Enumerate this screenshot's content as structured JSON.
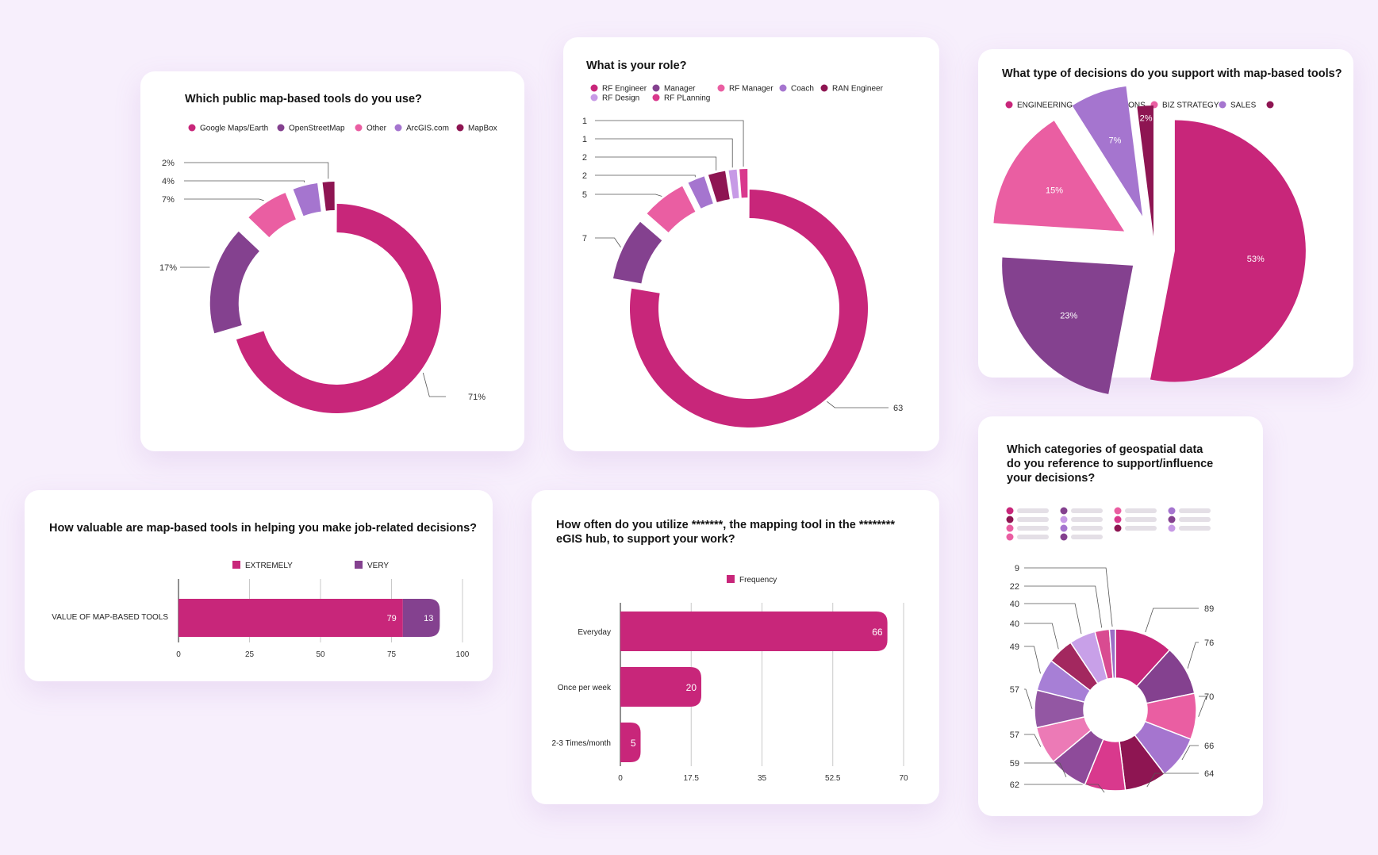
{
  "colors": {
    "magenta": "#c8267a",
    "purple": "#84418f",
    "pink": "#ea5ea2",
    "lavender": "#a575cf",
    "plum": "#8e1552",
    "lilac": "#c79ae6",
    "rose": "#d9398d"
  },
  "chart_data": [
    {
      "id": "public-tools",
      "type": "pie",
      "title": "Which public map-based tools do you use?",
      "categories": [
        "Google Maps/Earth",
        "OpenStreetMap",
        "Other",
        "ArcGIS.com",
        "MapBox"
      ],
      "values": [
        71,
        17,
        7,
        4,
        2
      ],
      "value_labels": [
        "71%",
        "17%",
        "7%",
        "4%",
        "2%"
      ],
      "style": "donut"
    },
    {
      "id": "role",
      "type": "pie",
      "title": "What is your role?",
      "categories": [
        "RF Engineer",
        "Manager",
        "RF Manager",
        "Coach",
        "RAN Engineer",
        "RF Design",
        "RF PLanning"
      ],
      "values": [
        63,
        7,
        5,
        2,
        2,
        1,
        1
      ],
      "value_labels": [
        "63",
        "7",
        "5",
        "2",
        "2",
        "1",
        "1"
      ],
      "style": "donut"
    },
    {
      "id": "decision-types",
      "type": "pie",
      "title": "What type of decisions do you support with map-based tools?",
      "categories": [
        "ENGINEERING",
        "OPERATIONS",
        "BIZ STRATEGY",
        "SALES",
        ""
      ],
      "values": [
        53,
        23,
        15,
        7,
        2
      ],
      "value_labels": [
        "53%",
        "23%",
        "15%",
        "7%",
        "2%"
      ],
      "style": "exploded"
    },
    {
      "id": "value",
      "type": "bar",
      "orientation": "horizontal",
      "stacked": true,
      "title": "How valuable are map-based tools in helping you make job-related decisions?",
      "categories": [
        "VALUE OF MAP-BASED TOOLS"
      ],
      "series": [
        {
          "name": "EXTREMELY",
          "values": [
            79
          ]
        },
        {
          "name": "VERY",
          "values": [
            13
          ]
        }
      ],
      "xlim": [
        0,
        100
      ],
      "xticks": [
        0,
        25,
        50,
        75,
        100
      ]
    },
    {
      "id": "frequency",
      "type": "bar",
      "orientation": "horizontal",
      "title": "How often do you utilize *******, the mapping tool in the ******** eGIS hub, to support your work?",
      "categories": [
        "Everyday",
        "Once per week",
        "2-3 Times/month"
      ],
      "series": [
        {
          "name": "Frequency",
          "values": [
            66,
            20,
            5
          ]
        }
      ],
      "xlim": [
        0,
        70
      ],
      "xticks": [
        "0",
        "17.5",
        "35",
        "52.5",
        "70"
      ]
    },
    {
      "id": "geo-categories",
      "type": "pie",
      "title": "Which categories of geospatial data\ndo you reference to support/influence\nyour decisions?",
      "values": [
        89,
        76,
        70,
        66,
        64,
        62,
        59,
        57,
        57,
        49,
        40,
        40,
        22,
        9
      ],
      "value_labels": [
        "89",
        "76",
        "70",
        "66",
        "64",
        "62",
        "59",
        "57",
        "57",
        "49",
        "40",
        "40",
        "22",
        "9"
      ],
      "style": "donut"
    }
  ]
}
